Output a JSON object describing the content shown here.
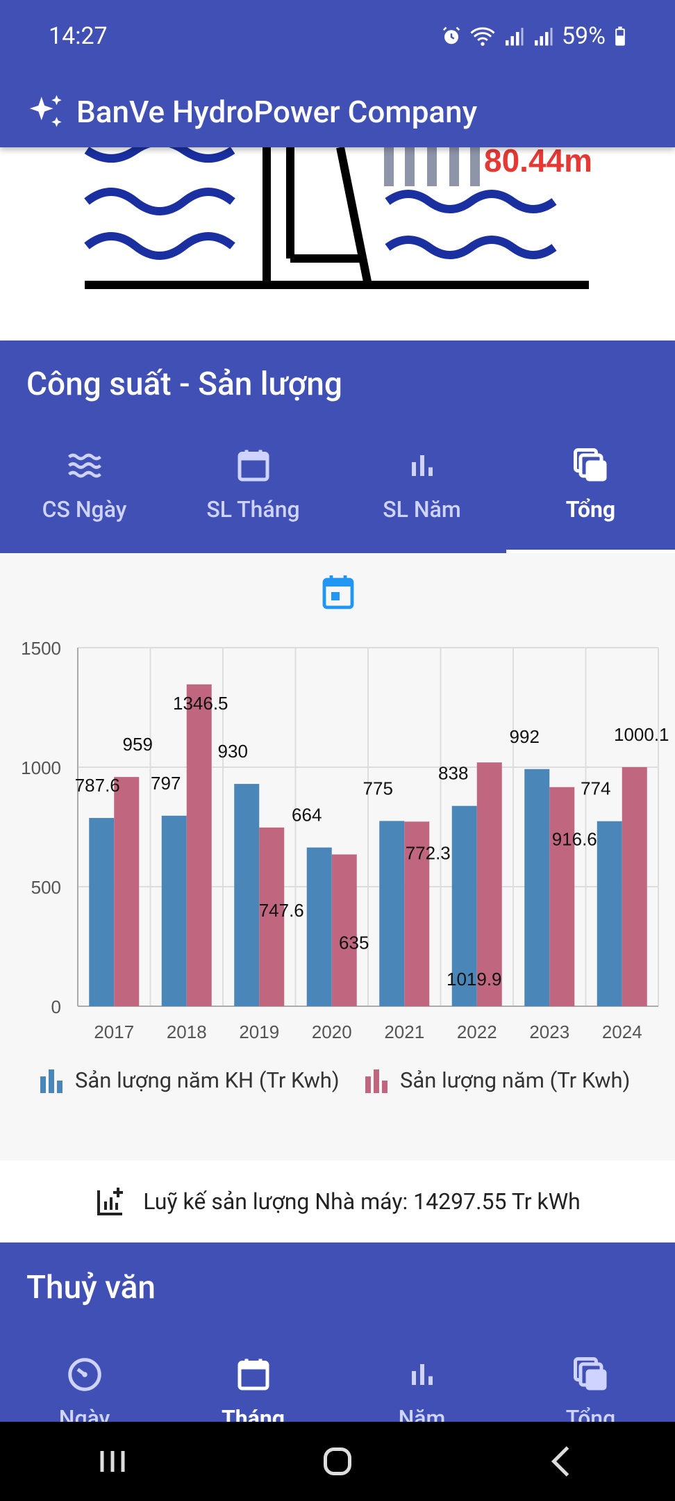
{
  "status_bar": {
    "time": "14:27",
    "battery": "59%"
  },
  "app_bar": {
    "title": "BanVe HydroPower Company"
  },
  "dam": {
    "water_level": "80.44m"
  },
  "power_section": {
    "title": "Công suất - Sản lượng",
    "tabs": [
      {
        "label": "CS Ngày",
        "icon": "waves-icon",
        "active": false
      },
      {
        "label": "SL Tháng",
        "icon": "calendar-icon",
        "active": false
      },
      {
        "label": "SL Năm",
        "icon": "bar-chart-icon",
        "active": false
      },
      {
        "label": "Tổng",
        "icon": "layers-icon",
        "active": true
      }
    ]
  },
  "chart_data": {
    "type": "bar",
    "categories": [
      "2017",
      "2018",
      "2019",
      "2020",
      "2021",
      "2022",
      "2023",
      "2024"
    ],
    "series": [
      {
        "name": "Sản lượng năm KH (Tr Kwh)",
        "color": "#4a86b8",
        "values": [
          787.6,
          797,
          930,
          664,
          775,
          838,
          992,
          774
        ]
      },
      {
        "name": "Sản lượng năm (Tr Kwh)",
        "color": "#c0677f",
        "values": [
          959,
          1346.5,
          747.6,
          635,
          772.3,
          1019.9,
          916.6,
          1000.1
        ]
      }
    ],
    "data_labels": [
      [
        "787.6",
        "959"
      ],
      [
        "797",
        "1346.5"
      ],
      [
        "930",
        "747.6"
      ],
      [
        "664",
        "635"
      ],
      [
        "775",
        "772.3"
      ],
      [
        "838",
        "1019.9"
      ],
      [
        "992",
        "916.6"
      ],
      [
        "774",
        "1000.1"
      ]
    ],
    "yticks": [
      "0",
      "500",
      "1000",
      "1500"
    ],
    "ylim": [
      0,
      1500
    ],
    "grid": true,
    "legend_position": "bottom"
  },
  "cumulative": {
    "text": "Luỹ kế sản lượng Nhà máy: 14297.55 Tr kWh"
  },
  "hydrology_section": {
    "title": "Thuỷ văn",
    "tabs": [
      {
        "label": "Ngày",
        "icon": "timer-icon",
        "active": false
      },
      {
        "label": "Tháng",
        "icon": "calendar-icon",
        "active": true
      },
      {
        "label": "Năm",
        "icon": "bar-chart-icon",
        "active": false
      },
      {
        "label": "Tổng",
        "icon": "layers-icon",
        "active": false
      }
    ]
  }
}
